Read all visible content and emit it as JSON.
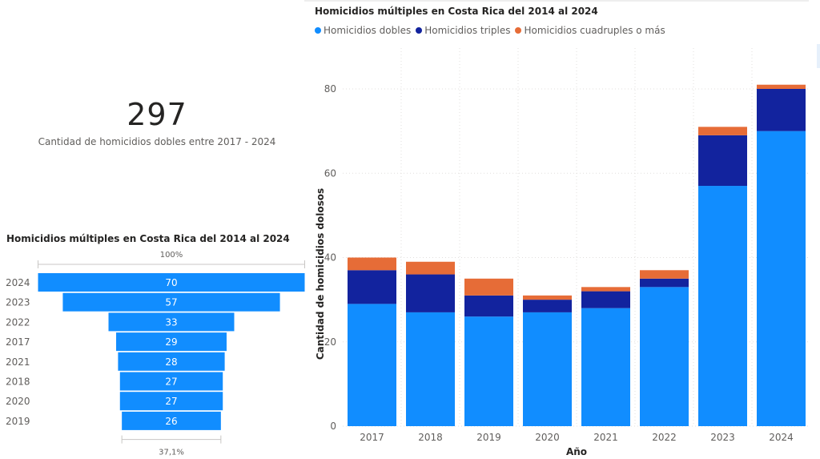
{
  "kpi": {
    "value": "297",
    "label": "Cantidad de homicidios dobles entre 2017 - 2024"
  },
  "colors": {
    "dobles": "#118dff",
    "triples": "#12239e",
    "cuadruples": "#e66c37",
    "axis_text": "#605e5c",
    "grid": "#e1dfdd"
  },
  "chart_data": [
    {
      "type": "bar",
      "stacked": true,
      "title": "Homicidios múltiples en Costa Rica del 2014 al 2024",
      "xlabel": "Año",
      "ylabel": "Cantidad de homicidios dolosos",
      "categories": [
        "2017",
        "2018",
        "2019",
        "2020",
        "2021",
        "2022",
        "2023",
        "2024"
      ],
      "series": [
        {
          "name": "Homicidios dobles",
          "color_key": "dobles",
          "values": [
            29,
            27,
            26,
            27,
            28,
            33,
            57,
            70
          ]
        },
        {
          "name": "Homicidios triples",
          "color_key": "triples",
          "values": [
            8,
            9,
            5,
            3,
            4,
            2,
            12,
            10
          ]
        },
        {
          "name": "Homicidios cuadruples o más",
          "color_key": "cuadruples",
          "values": [
            3,
            3,
            4,
            1,
            1,
            2,
            2,
            1
          ]
        }
      ],
      "ylim": [
        0,
        85
      ],
      "yticks": [
        0,
        20,
        40,
        60,
        80
      ],
      "grid": true,
      "legend": "top-left"
    },
    {
      "type": "funnel",
      "title": "Homicidios múltiples en Costa Rica del 2014 al 2024",
      "categories": [
        "2024",
        "2023",
        "2022",
        "2017",
        "2021",
        "2018",
        "2020",
        "2019"
      ],
      "values": [
        70,
        57,
        33,
        29,
        28,
        27,
        27,
        26
      ],
      "top_label": "100%",
      "bottom_label": "37,1%"
    }
  ]
}
